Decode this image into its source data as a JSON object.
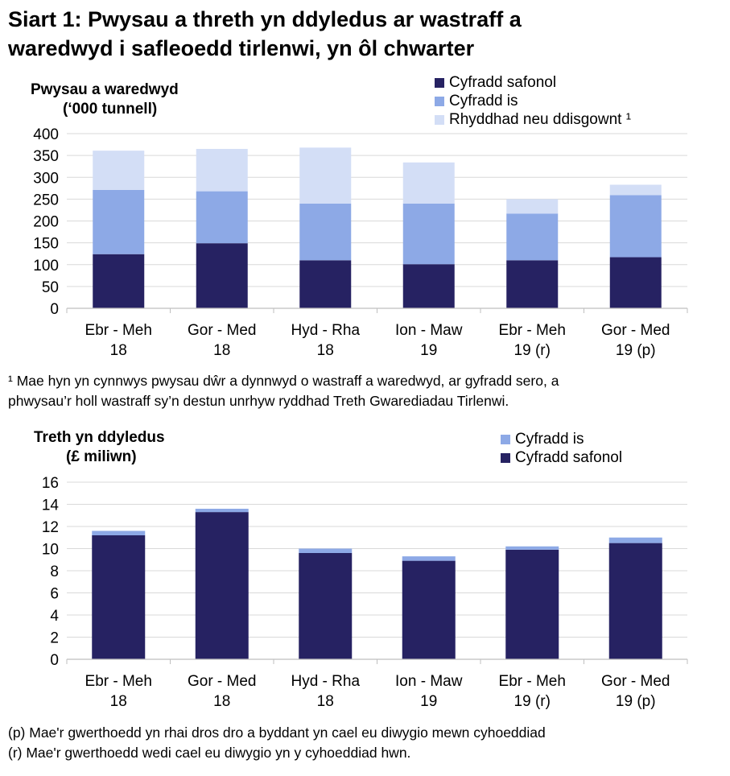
{
  "title_line1": "Siart 1: Pwysau a threth yn ddyledus ar wastraff a",
  "title_line2": "waredwyd i safleoedd tirlenwi, yn ôl chwarter",
  "colors": {
    "standard": "#262262",
    "lower": "#8DA9E6",
    "exempt": "#D3DEF6",
    "grid": "#d9d9d9",
    "axis": "#bfbfbf"
  },
  "chart_data": [
    {
      "type": "bar",
      "stacked": true,
      "ylabel_line1": "Pwysau a waredwyd",
      "ylabel_line2": "(‘000 tunnell)",
      "categories": [
        [
          "Ebr - Meh",
          "18"
        ],
        [
          "Gor - Med",
          "18"
        ],
        [
          "Hyd - Rha",
          "18"
        ],
        [
          "Ion - Maw",
          "19"
        ],
        [
          "Ebr - Meh",
          "19 (r)"
        ],
        [
          "Gor - Med",
          "19 (p)"
        ]
      ],
      "ylim": [
        0,
        400
      ],
      "yticks": [
        0,
        50,
        100,
        150,
        200,
        250,
        300,
        350,
        400
      ],
      "grid": true,
      "legend_position": "top-right",
      "series": [
        {
          "name": "Cyfradd safonol",
          "key": "standard",
          "values": [
            124,
            149,
            110,
            101,
            110,
            117
          ]
        },
        {
          "name": "Cyfradd is",
          "key": "lower",
          "values": [
            147,
            119,
            130,
            139,
            107,
            142
          ]
        },
        {
          "name": "Rhyddhad neu ddisgownt ¹",
          "key": "exempt",
          "values": [
            90,
            97,
            128,
            94,
            33,
            24
          ]
        }
      ]
    },
    {
      "type": "bar",
      "stacked": true,
      "ylabel_line1": "Treth yn ddyledus",
      "ylabel_line2": "(£ miliwn)",
      "categories": [
        [
          "Ebr - Meh",
          "18"
        ],
        [
          "Gor - Med",
          "18"
        ],
        [
          "Hyd - Rha",
          "18"
        ],
        [
          "Ion - Maw",
          "19"
        ],
        [
          "Ebr - Meh",
          "19 (r)"
        ],
        [
          "Gor - Med",
          "19 (p)"
        ]
      ],
      "ylim": [
        0,
        16
      ],
      "yticks": [
        0,
        2,
        4,
        6,
        8,
        10,
        12,
        14,
        16
      ],
      "grid": true,
      "legend_position": "top-right",
      "series": [
        {
          "name": "Cyfradd safonol",
          "key": "standard",
          "values": [
            11.2,
            13.3,
            9.6,
            8.9,
            9.9,
            10.5
          ]
        },
        {
          "name": "Cyfradd is",
          "key": "lower",
          "values": [
            0.4,
            0.3,
            0.4,
            0.4,
            0.3,
            0.5
          ]
        }
      ]
    }
  ],
  "footnote1_line1": "¹ Mae hyn yn cynnwys pwysau dŵr a dynnwyd o wastraff a waredwyd, ar gyfradd sero, a",
  "footnote1_line2": "phwysau’r holl wastraff sy’n destun unrhyw ryddhad Treth Gwarediadau Tirlenwi.",
  "note_p": "(p) Mae'r gwerthoedd yn rhai dros dro a byddant yn cael eu diwygio mewn cyhoeddiad",
  "note_r": "(r) Mae'r gwerthoedd wedi cael eu diwygio yn y cyhoeddiad hwn."
}
